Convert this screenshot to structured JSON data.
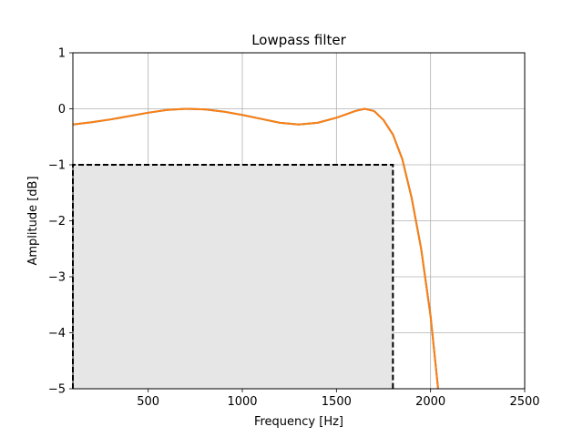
{
  "chart_data": {
    "type": "line",
    "title": "Lowpass filter",
    "xlabel": "Frequency [Hz]",
    "ylabel": "Amplitude [dB]",
    "xlim": [
      100,
      2500
    ],
    "ylim": [
      -5,
      1
    ],
    "xticks": [
      500,
      1000,
      1500,
      2000,
      2500
    ],
    "xtick_labels": [
      "500",
      "1000",
      "1500",
      "2000",
      "2500"
    ],
    "yticks": [
      1,
      0,
      -1,
      -2,
      -3,
      -4,
      -5
    ],
    "ytick_labels": [
      "1",
      "0",
      "−1",
      "−2",
      "−3",
      "−4",
      "−5"
    ],
    "grid": true,
    "series": [
      {
        "color": "#1f77b4",
        "x": [
          100,
          200,
          300,
          400,
          500,
          600,
          700,
          800,
          900,
          1000,
          1100,
          1200,
          1300,
          1400,
          1500,
          1600,
          1650,
          1700,
          1750,
          1800,
          1850,
          1900,
          1950,
          2000,
          2040
        ],
        "y": [
          -0.28,
          -0.24,
          -0.19,
          -0.13,
          -0.07,
          -0.02,
          0.0,
          -0.01,
          -0.05,
          -0.11,
          -0.18,
          -0.25,
          -0.28,
          -0.25,
          -0.16,
          -0.04,
          0.0,
          -0.04,
          -0.2,
          -0.46,
          -0.9,
          -1.6,
          -2.5,
          -3.7,
          -5.0
        ]
      },
      {
        "color": "#ff7f0e",
        "x": [
          100,
          200,
          300,
          400,
          500,
          600,
          700,
          800,
          900,
          1000,
          1100,
          1200,
          1300,
          1400,
          1500,
          1600,
          1650,
          1700,
          1750,
          1800,
          1850,
          1900,
          1950,
          2000,
          2040
        ],
        "y": [
          -0.28,
          -0.24,
          -0.19,
          -0.13,
          -0.07,
          -0.02,
          0.0,
          -0.01,
          -0.05,
          -0.11,
          -0.18,
          -0.25,
          -0.28,
          -0.25,
          -0.16,
          -0.04,
          0.0,
          -0.04,
          -0.2,
          -0.46,
          -0.9,
          -1.6,
          -2.5,
          -3.7,
          -5.0
        ]
      }
    ],
    "passband_region": {
      "x": [
        100,
        1800
      ],
      "y": [
        -5,
        -1
      ],
      "fill": "#e6e6e6",
      "border": "#000000",
      "border_style": "dashed"
    }
  }
}
